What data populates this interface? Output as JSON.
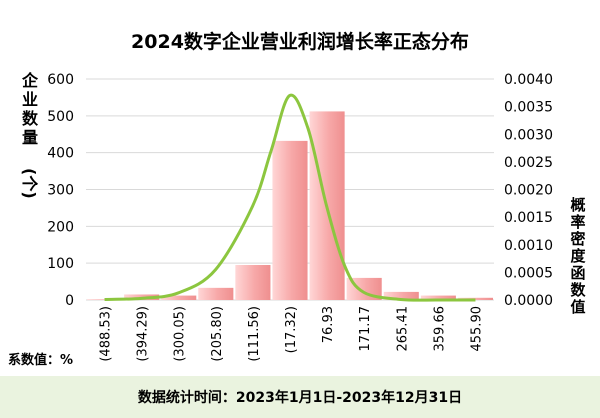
{
  "chart_data": {
    "type": "bar",
    "title": "2024数字企业营业利润增长率正态分布",
    "ylabel": "企业数量(个)",
    "y2label": "概率密度函数值",
    "categories": [
      "(488.53)",
      "(394.29)",
      "(300.05)",
      "(205.80)",
      "(111.56)",
      "(17.32)",
      "76.93",
      "171.17",
      "265.41",
      "359.66",
      "455.90"
    ],
    "series": [
      {
        "values": [
          2,
          15,
          12,
          33,
          95,
          432,
          512,
          60,
          22,
          12,
          6
        ],
        "color": "#f4a3a3"
      }
    ],
    "density_curve": {
      "color": "#8cc63f",
      "x": [
        -488.53,
        -394.29,
        -300.05,
        -205.8,
        -111.56,
        -64.44,
        -17.32,
        29.8,
        76.93,
        124.05,
        171.17,
        265.41,
        359.66,
        455.9
      ],
      "y": [
        1e-05,
        3e-05,
        0.00013,
        0.00055,
        0.0017,
        0.0027,
        0.0037,
        0.0031,
        0.0017,
        0.0006,
        0.00014,
        1e-05,
        0.0,
        0.0
      ]
    },
    "ylim": [
      0,
      600
    ],
    "yticks": [
      0,
      100,
      200,
      300,
      400,
      500,
      600
    ],
    "y2lim": [
      0,
      0.004
    ],
    "y2ticks": [
      "0.0000",
      "0.0005",
      "0.0010",
      "0.0015",
      "0.0020",
      "0.0025",
      "0.0030",
      "0.0035",
      "0.0040"
    ],
    "grid": true,
    "legend": "none"
  },
  "note": "系数值：%",
  "footer": "数据统计时间：2023年1月1日-2023年12月31日"
}
